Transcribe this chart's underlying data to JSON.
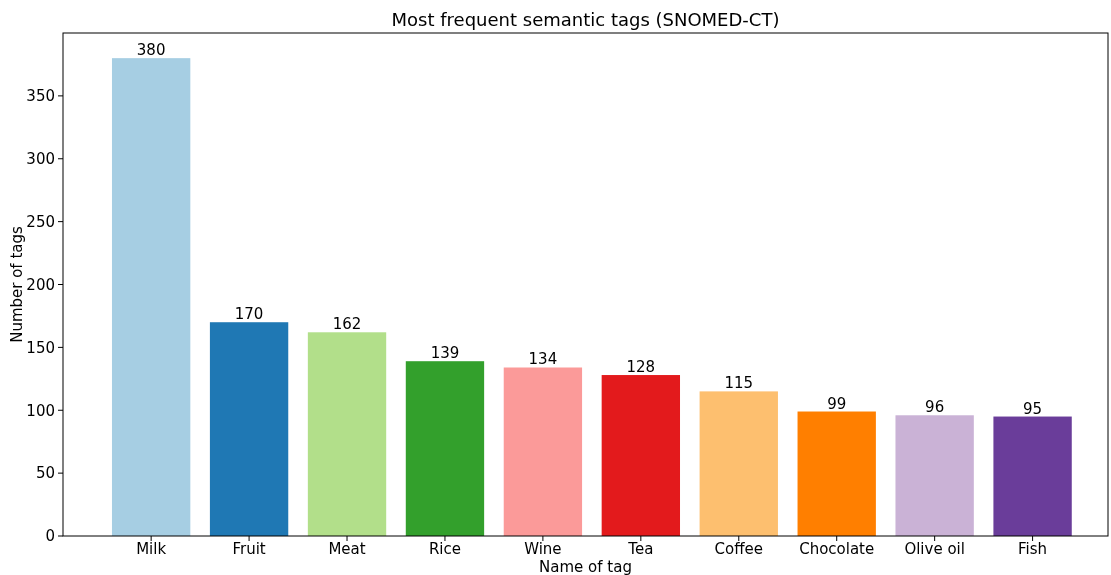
{
  "chart_data": {
    "type": "bar",
    "title": "Most frequent semantic tags (SNOMED-CT)",
    "xlabel": "Name of tag",
    "ylabel": "Number of tags",
    "categories": [
      "Milk",
      "Fruit",
      "Meat",
      "Rice",
      "Wine",
      "Tea",
      "Coffee",
      "Chocolate",
      "Olive oil",
      "Fish"
    ],
    "values": [
      380,
      170,
      162,
      139,
      134,
      128,
      115,
      99,
      96,
      95
    ],
    "colors": [
      "#a6cee3",
      "#1f78b4",
      "#b2df8a",
      "#33a02c",
      "#fb9a99",
      "#e31a1c",
      "#fdbf6f",
      "#ff7f00",
      "#cab2d6",
      "#6a3d9a"
    ],
    "ylim": [
      0,
      400
    ],
    "yticks": [
      0,
      50,
      100,
      150,
      200,
      250,
      300,
      350
    ],
    "data_labels": true,
    "grid": false
  }
}
